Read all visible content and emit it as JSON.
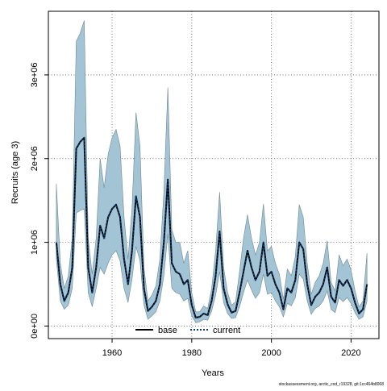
{
  "chart_data": {
    "type": "area",
    "title": "",
    "xlabel": "Years",
    "ylabel": "Recruits (age 3)",
    "xlim": [
      1944,
      2027
    ],
    "ylim": [
      -150000,
      3760000
    ],
    "grid": true,
    "x_ticks": [
      1960,
      1980,
      2000,
      2020
    ],
    "x_tick_labels": [
      "1960",
      "1980",
      "2000",
      "2020"
    ],
    "y_ticks": [
      0,
      1000000,
      2000000,
      3000000
    ],
    "y_tick_labels": [
      "0e+00",
      "1e+06",
      "2e+06",
      "3e+06"
    ],
    "legend": {
      "position": "bottom-center",
      "entries": [
        "base",
        "current"
      ]
    },
    "colors": {
      "band": "#a2c4d5",
      "band_edge": "#6f8893",
      "base": "#000000",
      "current": "#0d3b6b",
      "grid": "#555555"
    },
    "x": [
      1946,
      1947,
      1948,
      1949,
      1950,
      1951,
      1952,
      1953,
      1954,
      1955,
      1956,
      1957,
      1958,
      1959,
      1960,
      1961,
      1962,
      1963,
      1964,
      1965,
      1966,
      1967,
      1968,
      1969,
      1970,
      1971,
      1972,
      1973,
      1974,
      1975,
      1976,
      1977,
      1978,
      1979,
      1980,
      1981,
      1982,
      1983,
      1984,
      1985,
      1986,
      1987,
      1988,
      1989,
      1990,
      1991,
      1992,
      1993,
      1994,
      1995,
      1996,
      1997,
      1998,
      1999,
      2000,
      2001,
      2002,
      2003,
      2004,
      2005,
      2006,
      2007,
      2008,
      2009,
      2010,
      2011,
      2012,
      2013,
      2014,
      2015,
      2016,
      2017,
      2018,
      2019,
      2020,
      2021,
      2022,
      2023,
      2024
    ],
    "series": [
      {
        "name": "base",
        "values": [
          1000000,
          500000,
          300000,
          400000,
          700000,
          2120000,
          2200000,
          2250000,
          700000,
          400000,
          700000,
          1200000,
          1050000,
          1300000,
          1400000,
          1450000,
          1300000,
          800000,
          500000,
          900000,
          1550000,
          1300000,
          450000,
          180000,
          230000,
          300000,
          500000,
          1000000,
          1750000,
          750000,
          650000,
          620000,
          500000,
          550000,
          250000,
          100000,
          110000,
          150000,
          130000,
          300000,
          600000,
          1130000,
          450000,
          260000,
          160000,
          180000,
          400000,
          650000,
          900000,
          700000,
          550000,
          650000,
          1000000,
          600000,
          650000,
          500000,
          400000,
          200000,
          450000,
          400000,
          550000,
          1000000,
          920000,
          500000,
          250000,
          350000,
          400000,
          500000,
          700000,
          350000,
          280000,
          550000,
          480000,
          550000,
          450000,
          280000,
          150000,
          200000,
          500000
        ]
      },
      {
        "name": "current",
        "values": [
          1000000,
          500000,
          300000,
          400000,
          700000,
          2120000,
          2200000,
          2250000,
          700000,
          400000,
          700000,
          1200000,
          1050000,
          1300000,
          1400000,
          1450000,
          1300000,
          800000,
          500000,
          900000,
          1550000,
          1300000,
          450000,
          180000,
          230000,
          300000,
          500000,
          1000000,
          1750000,
          750000,
          650000,
          620000,
          500000,
          550000,
          250000,
          100000,
          110000,
          150000,
          130000,
          300000,
          600000,
          1130000,
          450000,
          260000,
          160000,
          180000,
          400000,
          650000,
          900000,
          700000,
          550000,
          650000,
          1000000,
          600000,
          650000,
          500000,
          400000,
          200000,
          450000,
          400000,
          550000,
          1000000,
          920000,
          500000,
          250000,
          350000,
          400000,
          500000,
          700000,
          350000,
          280000,
          550000,
          480000,
          550000,
          450000,
          280000,
          150000,
          200000,
          500000
        ]
      }
    ],
    "band_lower": [
      800000,
      300000,
      200000,
      250000,
      450000,
      1350000,
      1380000,
      1400000,
      400000,
      230000,
      450000,
      700000,
      620000,
      750000,
      850000,
      900000,
      780000,
      450000,
      280000,
      560000,
      950000,
      780000,
      250000,
      80000,
      120000,
      170000,
      300000,
      600000,
      1100000,
      450000,
      400000,
      380000,
      300000,
      330000,
      120000,
      40000,
      50000,
      80000,
      70000,
      180000,
      370000,
      650000,
      280000,
      150000,
      90000,
      100000,
      230000,
      400000,
      550000,
      430000,
      330000,
      400000,
      620000,
      380000,
      400000,
      300000,
      230000,
      110000,
      270000,
      240000,
      340000,
      620000,
      560000,
      300000,
      140000,
      210000,
      240000,
      300000,
      420000,
      200000,
      160000,
      340000,
      290000,
      340000,
      270000,
      160000,
      80000,
      110000,
      300000
    ],
    "band_upper": [
      1700000,
      750000,
      450000,
      600000,
      1050000,
      3400000,
      3500000,
      3650000,
      1050000,
      620000,
      1050000,
      2000000,
      1650000,
      2050000,
      2250000,
      2350000,
      2150000,
      1300000,
      800000,
      1400000,
      2550000,
      2150000,
      700000,
      300000,
      370000,
      480000,
      800000,
      1600000,
      2850000,
      1150000,
      1000000,
      1000000,
      750000,
      900000,
      400000,
      170000,
      170000,
      240000,
      210000,
      450000,
      900000,
      1600000,
      700000,
      400000,
      250000,
      290000,
      650000,
      1050000,
      1330000,
      1050000,
      850000,
      1000000,
      1460000,
      900000,
      950000,
      750000,
      620000,
      320000,
      680000,
      600000,
      830000,
      1450000,
      1300000,
      750000,
      380000,
      520000,
      600000,
      750000,
      1020000,
      520000,
      420000,
      850000,
      720000,
      800000,
      670000,
      420000,
      230000,
      300000,
      870000
    ]
  },
  "credit": "stockassessment.org, arctic_cod_r19328, git:1cc464b8068"
}
